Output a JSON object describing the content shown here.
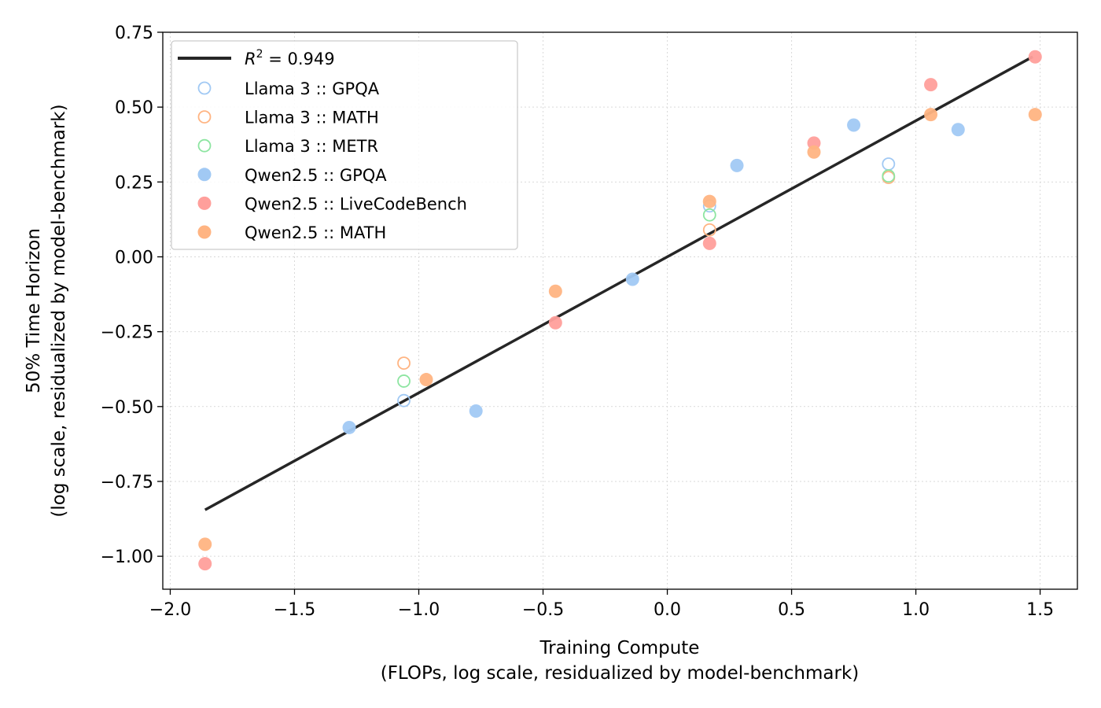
{
  "chart_data": {
    "type": "scatter",
    "title": "",
    "xlabel": "Training Compute",
    "xlabel_sub": "(FLOPs, log scale, residualized by model-benchmark)",
    "ylabel": "50% Time Horizon",
    "ylabel_sub": "(log scale, residualized by model-benchmark)",
    "xlim": [
      -2.03,
      1.65
    ],
    "ylim": [
      -1.11,
      0.75
    ],
    "x_ticks": [
      -2.0,
      -1.5,
      -1.0,
      -0.5,
      0.0,
      0.5,
      1.0,
      1.5
    ],
    "x_tick_labels": [
      "−2.0",
      "−1.5",
      "−1.0",
      "−0.5",
      "0.0",
      "0.5",
      "1.0",
      "1.5"
    ],
    "y_ticks": [
      0.75,
      0.5,
      0.25,
      0.0,
      -0.25,
      -0.5,
      -0.75,
      -1.0
    ],
    "y_tick_labels": [
      "0.75",
      "0.50",
      "0.25",
      "0.00",
      "−0.25",
      "−0.50",
      "−0.75",
      "−1.00"
    ],
    "grid": true,
    "legend_position": "top-left",
    "fit_line": {
      "label_prefix": "R",
      "label_sup": "2",
      "label_suffix": " = 0.949",
      "color": "#262626",
      "x": [
        -1.86,
        1.47
      ],
      "y": [
        -0.845,
        0.668
      ]
    },
    "series": [
      {
        "name": "Llama 3 :: GPQA",
        "color": "#a1c9f4",
        "filled": false,
        "points": [
          [
            -1.06,
            -0.48
          ],
          [
            0.17,
            0.17
          ],
          [
            0.89,
            0.31
          ]
        ]
      },
      {
        "name": "Llama 3 :: MATH",
        "color": "#ffb482",
        "filled": false,
        "points": [
          [
            -1.06,
            -0.355
          ],
          [
            0.17,
            0.09
          ],
          [
            0.89,
            0.265
          ]
        ]
      },
      {
        "name": "Llama 3 :: METR",
        "color": "#8de5a1",
        "filled": false,
        "points": [
          [
            -1.06,
            -0.415
          ],
          [
            0.17,
            0.14
          ],
          [
            0.89,
            0.27
          ]
        ]
      },
      {
        "name": "Qwen2.5 :: GPQA",
        "color": "#a1c9f4",
        "filled": true,
        "points": [
          [
            -1.28,
            -0.57
          ],
          [
            -0.77,
            -0.515
          ],
          [
            -0.14,
            -0.075
          ],
          [
            0.28,
            0.305
          ],
          [
            0.75,
            0.44
          ],
          [
            1.17,
            0.425
          ]
        ]
      },
      {
        "name": "Qwen2.5 :: LiveCodeBench",
        "color": "#ff9f9b",
        "filled": true,
        "points": [
          [
            -1.86,
            -1.025
          ],
          [
            -0.45,
            -0.22
          ],
          [
            0.17,
            0.045
          ],
          [
            0.59,
            0.38
          ],
          [
            1.06,
            0.575
          ],
          [
            1.48,
            0.668
          ]
        ]
      },
      {
        "name": "Qwen2.5 :: MATH",
        "color": "#ffb482",
        "filled": true,
        "points": [
          [
            -1.86,
            -0.96
          ],
          [
            -0.97,
            -0.41
          ],
          [
            -0.45,
            -0.115
          ],
          [
            0.17,
            0.185
          ],
          [
            0.59,
            0.35
          ],
          [
            1.06,
            0.475
          ],
          [
            1.48,
            0.475
          ]
        ]
      }
    ]
  }
}
